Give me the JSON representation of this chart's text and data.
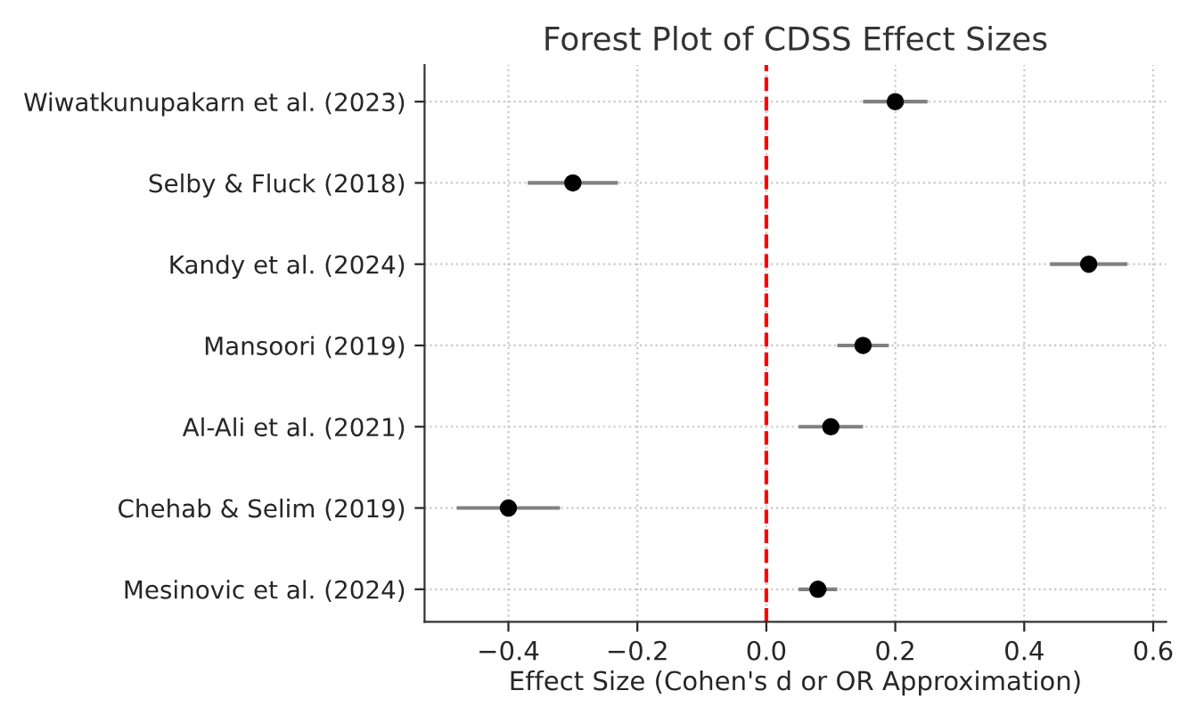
{
  "chart_data": {
    "type": "scatter",
    "title": "Forest Plot of CDSS Effect Sizes",
    "xlabel": "Effect Size (Cohen's d or OR Approximation)",
    "orientation": "horizontal",
    "categories": [
      "Wiwatkunupakarn et al. (2023)",
      "Selby & Fluck (2018)",
      "Kandy et al. (2024)",
      "Mansoori (2019)",
      "Al-Ali et al. (2021)",
      "Chehab & Selim (2019)",
      "Mesinovic et al. (2024)"
    ],
    "color": "#000000",
    "values": [
      0.2,
      -0.3,
      0.5,
      0.15,
      0.1,
      -0.4,
      0.08
    ],
    "errors": [
      [
        0.15,
        0.25
      ],
      [
        -0.37,
        -0.23
      ],
      [
        0.44,
        0.56
      ],
      [
        0.11,
        0.19
      ],
      [
        0.05,
        0.15
      ],
      [
        -0.48,
        -0.32
      ],
      [
        0.05,
        0.11
      ]
    ],
    "xlim": [
      -0.53,
      0.62
    ],
    "xticks": [
      {
        "value": -0.4,
        "label": "−0.4"
      },
      {
        "value": -0.2,
        "label": "−0.2"
      },
      {
        "value": 0.0,
        "label": "0.0"
      },
      {
        "value": 0.2,
        "label": "0.2"
      },
      {
        "value": 0.4,
        "label": "0.4"
      },
      {
        "value": 0.6,
        "label": "0.6"
      }
    ],
    "ref_lines": [
      {
        "axis": "x",
        "value": 0,
        "label": null,
        "color": "#ff0000",
        "line_style": "dashed"
      }
    ],
    "grid": true,
    "marker": "circle"
  }
}
